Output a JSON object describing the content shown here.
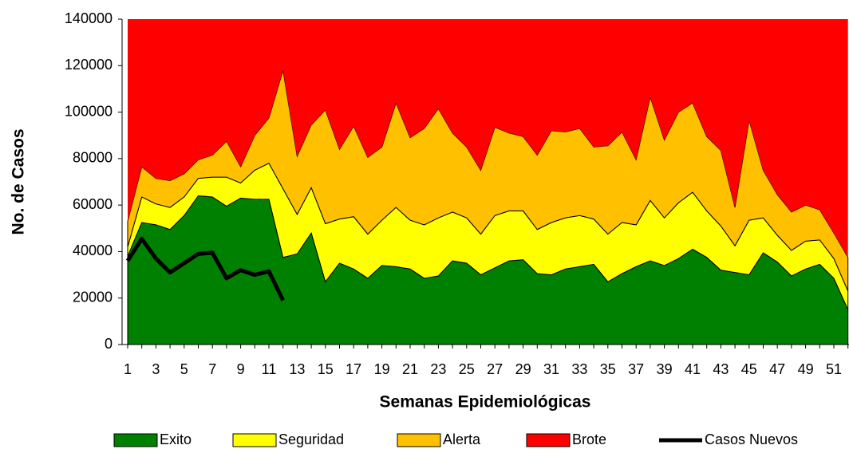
{
  "chart_data": {
    "type": "stacked_area_line",
    "x_label": "Semanas Epidemiológicas",
    "y_label": "No. de Casos",
    "categories": [
      1,
      null,
      3,
      null,
      5,
      null,
      7,
      null,
      9,
      null,
      11,
      null,
      13,
      null,
      15,
      null,
      17,
      null,
      19,
      null,
      21,
      null,
      23,
      null,
      25,
      null,
      27,
      null,
      29,
      null,
      31,
      null,
      33,
      null,
      35,
      null,
      37,
      null,
      39,
      null,
      41,
      null,
      43,
      null,
      45,
      null,
      47,
      null,
      49,
      null,
      51,
      null
    ],
    "ylim": [
      0,
      140000
    ],
    "yticks": [
      0,
      20000,
      40000,
      60000,
      80000,
      100000,
      120000,
      140000
    ],
    "legend": "bottom",
    "series": [
      {
        "name": "Exito",
        "color": "#008000",
        "kind": "area",
        "values": [
          38000,
          52500,
          51500,
          49500,
          55500,
          64000,
          63500,
          59500,
          63000,
          62500,
          62500,
          37500,
          39000,
          48000,
          27000,
          35000,
          32500,
          28500,
          34000,
          33500,
          32500,
          28500,
          29500,
          36000,
          35000,
          30000,
          33000,
          36000,
          36500,
          30500,
          30000,
          32500,
          33500,
          34500,
          27000,
          30500,
          33500,
          36000,
          34000,
          37000,
          41000,
          37500,
          32000,
          31000,
          30000,
          39500,
          35500,
          29500,
          32500,
          34500,
          28500,
          15000
        ]
      },
      {
        "name": "Seguridad",
        "color": "#ffff00",
        "kind": "area",
        "values": [
          4000,
          11000,
          9000,
          9500,
          8000,
          7500,
          8500,
          12500,
          6500,
          12500,
          15500,
          29500,
          17000,
          19500,
          25000,
          19000,
          22500,
          19000,
          19500,
          25500,
          21000,
          23000,
          25000,
          21000,
          19500,
          17500,
          22500,
          21500,
          21000,
          19000,
          22500,
          22000,
          22000,
          19500,
          20500,
          22000,
          18000,
          26000,
          20500,
          24000,
          24500,
          20000,
          19000,
          11500,
          23500,
          15000,
          11500,
          11000,
          12000,
          10500,
          8500,
          8000
        ]
      },
      {
        "name": "Alerta",
        "color": "#ffc000",
        "kind": "area",
        "values": [
          11000,
          13000,
          11000,
          11500,
          10000,
          8000,
          9500,
          15500,
          7000,
          15000,
          19500,
          51000,
          25000,
          27000,
          49000,
          30000,
          39000,
          33000,
          31500,
          45000,
          35500,
          41500,
          47000,
          34000,
          30500,
          27500,
          38000,
          33500,
          32000,
          32000,
          39500,
          37000,
          37500,
          31000,
          38000,
          39000,
          28000,
          44500,
          33500,
          39000,
          38500,
          32000,
          32500,
          16500,
          43000,
          20500,
          17500,
          16500,
          15500,
          13000,
          11000,
          14500
        ]
      },
      {
        "name": "Brote",
        "color": "#ff0000",
        "kind": "area",
        "values": [
          87000,
          63500,
          68500,
          69500,
          66500,
          60500,
          58500,
          52500,
          63500,
          50000,
          42500,
          22000,
          59000,
          45500,
          39000,
          56000,
          46000,
          59500,
          55000,
          36000,
          51000,
          47000,
          38500,
          49000,
          55000,
          65000,
          46500,
          49000,
          50500,
          58500,
          48000,
          48500,
          47000,
          55000,
          54500,
          48500,
          60500,
          33500,
          52000,
          40000,
          36000,
          50500,
          56500,
          81000,
          43500,
          65000,
          75500,
          83000,
          80000,
          82000,
          92000,
          102500
        ]
      },
      {
        "name": "Casos Nuevos",
        "color": "#000000",
        "kind": "line",
        "values": [
          36000,
          45500,
          37000,
          31000,
          35000,
          39000,
          39500,
          28500,
          32000,
          30000,
          31500,
          19000,
          null,
          null,
          null,
          null,
          null,
          null,
          null,
          null,
          null,
          null,
          null,
          null,
          null,
          null,
          null,
          null,
          null,
          null,
          null,
          null,
          null,
          null,
          null,
          null,
          null,
          null,
          null,
          null,
          null,
          null,
          null,
          null,
          null,
          null,
          null,
          null,
          null,
          null,
          null,
          null
        ]
      }
    ]
  }
}
